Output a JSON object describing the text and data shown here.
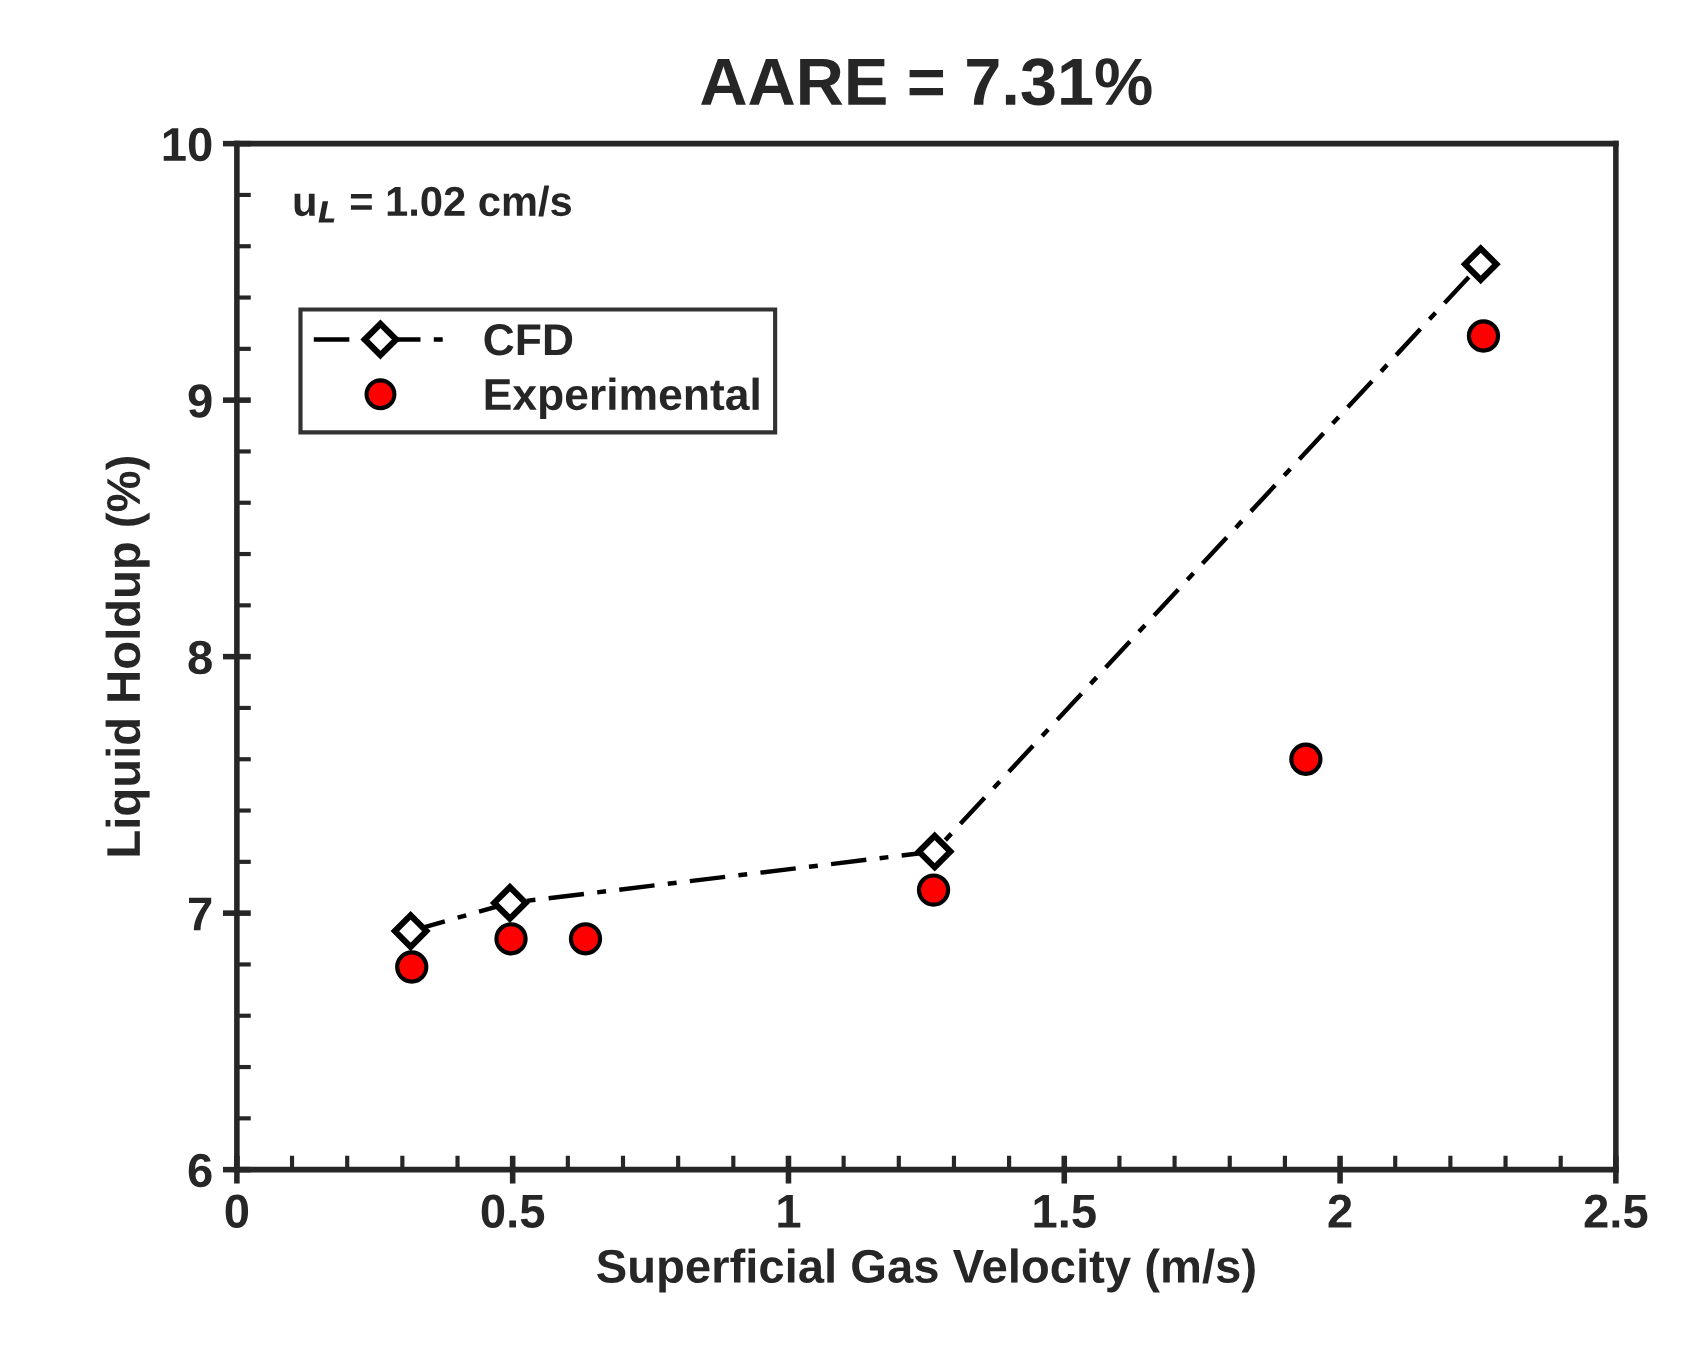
{
  "chart_data": {
    "type": "line",
    "title": "AARE = 7.31%",
    "xlabel": "Superficial Gas Velocity (m/s)",
    "ylabel": "Liquid Holdup (%)",
    "annotations": [
      "u$_{L}$ = 1.02 cm/s"
    ],
    "series": [
      {
        "name": "CFD",
        "color": "#000000",
        "marker": "diamond",
        "line_style": "dashdot",
        "x": [
          0.315,
          0.495,
          1.265,
          2.255
        ],
        "values": [
          6.93,
          7.04,
          7.24,
          9.53
        ]
      },
      {
        "name": "Experimental",
        "type": "scatter",
        "color": "#ff0000",
        "marker": "circle",
        "x": [
          0.317,
          0.497,
          0.632,
          1.263,
          1.938,
          2.26
        ],
        "values": [
          6.79,
          6.9,
          6.9,
          7.09,
          7.6,
          9.25
        ]
      }
    ],
    "xlim": [
      0,
      2.5
    ],
    "xticks": [
      0,
      0.5,
      1,
      1.5,
      2,
      2.5
    ],
    "ylim": [
      6,
      10
    ],
    "yticks": [
      6,
      7,
      8,
      9,
      10
    ],
    "grid": false,
    "legend": "top left"
  }
}
